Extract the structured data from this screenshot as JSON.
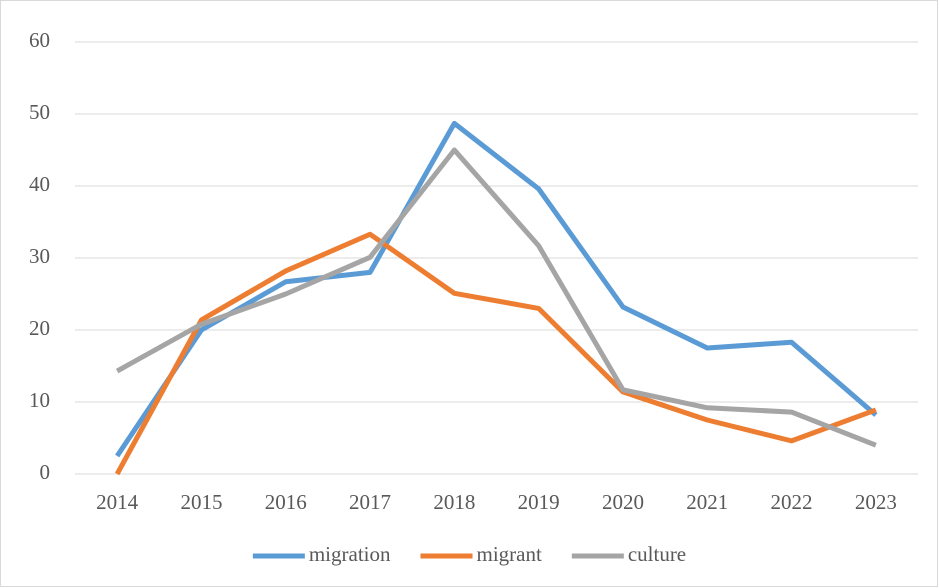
{
  "chart_data": {
    "type": "line",
    "categories": [
      "2014",
      "2015",
      "2016",
      "2017",
      "2018",
      "2019",
      "2020",
      "2021",
      "2022",
      "2023"
    ],
    "series": [
      {
        "name": "migration",
        "color": "#5b9bd5",
        "values": [
          2.5,
          20,
          26.7,
          28,
          48.7,
          39.6,
          23.2,
          17.5,
          18.3,
          8.2
        ]
      },
      {
        "name": "migrant",
        "color": "#ed7d31",
        "values": [
          0,
          21.4,
          28.2,
          33.3,
          25.1,
          23,
          11.4,
          7.5,
          4.6,
          8.9
        ]
      },
      {
        "name": "culture",
        "color": "#a5a5a5",
        "values": [
          14.3,
          20.8,
          25,
          30.1,
          45,
          31.7,
          11.7,
          9.2,
          8.6,
          4
        ]
      }
    ],
    "ylim": [
      0,
      60
    ],
    "yticks": [
      0,
      10,
      20,
      30,
      40,
      50,
      60
    ],
    "grid": true,
    "legend": "bottom"
  }
}
